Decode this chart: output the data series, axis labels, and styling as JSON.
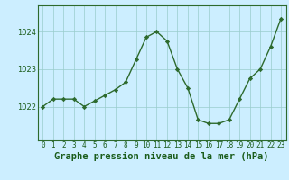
{
  "x": [
    0,
    1,
    2,
    3,
    4,
    5,
    6,
    7,
    8,
    9,
    10,
    11,
    12,
    13,
    14,
    15,
    16,
    17,
    18,
    19,
    20,
    21,
    22,
    23
  ],
  "y": [
    1022.0,
    1022.2,
    1022.2,
    1022.2,
    1022.0,
    1022.15,
    1022.3,
    1022.45,
    1022.65,
    1023.25,
    1023.85,
    1024.0,
    1023.75,
    1023.0,
    1022.5,
    1021.65,
    1021.55,
    1021.55,
    1021.65,
    1022.2,
    1022.75,
    1023.0,
    1023.6,
    1024.35
  ],
  "line_color": "#2d6a2d",
  "marker": "D",
  "markersize": 2.2,
  "linewidth": 1.0,
  "bg_color": "#cceeff",
  "grid_color": "#99cccc",
  "xlabel": "Graphe pression niveau de la mer (hPa)",
  "xlabel_fontsize": 7.5,
  "xlabel_color": "#1a5c1a",
  "xlabel_bold": true,
  "yticks": [
    1022,
    1023,
    1024
  ],
  "ylim": [
    1021.1,
    1024.7
  ],
  "xlim": [
    -0.5,
    23.5
  ],
  "xtick_labels": [
    "0",
    "1",
    "2",
    "3",
    "4",
    "5",
    "6",
    "7",
    "8",
    "9",
    "10",
    "11",
    "12",
    "13",
    "14",
    "15",
    "16",
    "17",
    "18",
    "19",
    "20",
    "21",
    "22",
    "23"
  ],
  "tick_color": "#1a5c1a",
  "tick_fontsize": 5.5,
  "ytick_fontsize": 6.0,
  "spine_color": "#2d6a2d"
}
